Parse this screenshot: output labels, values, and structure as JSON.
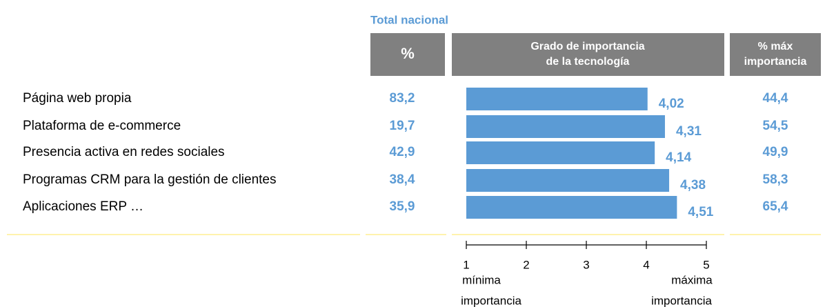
{
  "chart_data": {
    "type": "bar",
    "orientation": "horizontal",
    "title": "Total nacional",
    "headers": {
      "pct": [
        "%"
      ],
      "grade": [
        "Grado de importancia",
        "de la tecnología"
      ],
      "max": [
        "% máx",
        "importancia"
      ]
    },
    "categories": [
      "Página web propia",
      "Plataforma de e-commerce",
      "Presencia activa en redes sociales",
      "Programas CRM para la gestión de clientes",
      "Aplicaciones ERP …"
    ],
    "pct": [
      "83,2",
      "19,7",
      "42,9",
      "38,4",
      "35,9"
    ],
    "values": [
      4.02,
      4.31,
      4.14,
      4.38,
      4.51
    ],
    "value_labels": [
      "4,02",
      "4,31",
      "4,14",
      "4,38",
      "4,51"
    ],
    "max": [
      "44,4",
      "54,5",
      "49,9",
      "58,3",
      "65,4"
    ],
    "color": "#5b9bd5",
    "xlim": [
      1,
      5
    ],
    "xticks": [
      1,
      2,
      3,
      4,
      5
    ],
    "x_min_label": [
      "mínima",
      "importancia"
    ],
    "x_max_label": [
      "máxima",
      "importancia"
    ]
  }
}
